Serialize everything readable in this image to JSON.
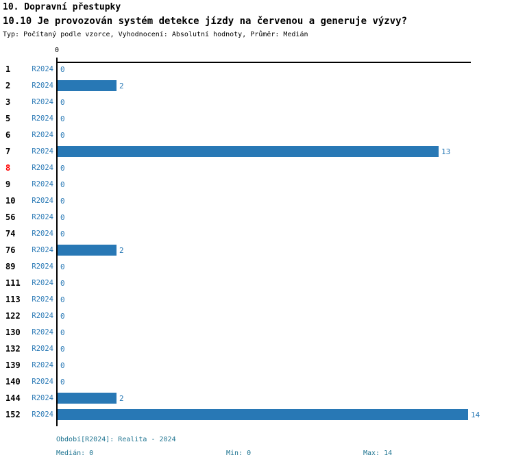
{
  "header": {
    "title": "10. Dopravní přestupky",
    "subtitle": "10.10 Je provozován systém detekce jízdy na červenou a generuje výzvy?",
    "meta": "Typ: Počítaný podle vzorce, Vyhodnocení: Absolutní hodnoty, Průměr: Medián"
  },
  "chart_data": {
    "type": "bar",
    "orientation": "horizontal",
    "series_label": "R2024",
    "categories": [
      "1",
      "2",
      "3",
      "5",
      "6",
      "7",
      "8",
      "9",
      "10",
      "56",
      "74",
      "76",
      "89",
      "111",
      "113",
      "122",
      "130",
      "132",
      "139",
      "140",
      "144",
      "152"
    ],
    "values": [
      0,
      2,
      0,
      0,
      0,
      13,
      0,
      0,
      0,
      0,
      0,
      2,
      0,
      0,
      0,
      0,
      0,
      0,
      0,
      0,
      2,
      14
    ],
    "highlighted_category": "8",
    "x_axis": {
      "position": "top",
      "tick_labels": [
        "0"
      ],
      "range": [
        0,
        14
      ]
    },
    "grid": "off",
    "value_labels": "shown-right-of-bar",
    "colors": {
      "bar": "#2878b5",
      "value_label": "#2878b5",
      "series_label": "#2878b5",
      "category_label": "#000000",
      "highlight": "#ff0000",
      "axis": "#000000"
    }
  },
  "footer": {
    "period": "Období[R2024]: Realita - 2024",
    "median": "Medián: 0",
    "min": "Min: 0",
    "max": "Max: 14",
    "color": "#1d7390"
  }
}
